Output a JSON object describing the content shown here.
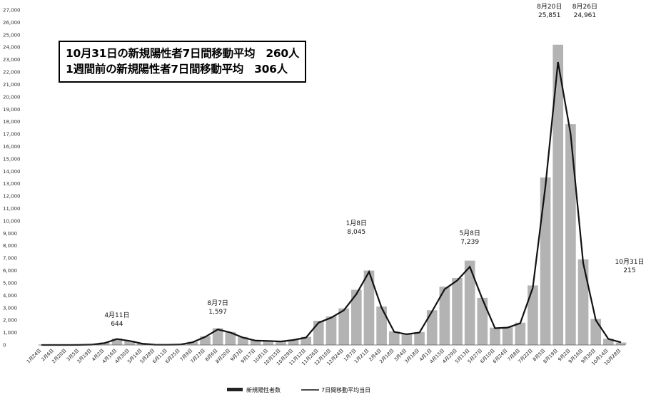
{
  "summary": {
    "line1": "10月31日の新規陽性者7日間移動平均　260人",
    "line2": "1週間前の新規陽性者7日間移動平均　306人"
  },
  "legend": {
    "bar_label": "新規陽性者数",
    "line_label": "7日間移動平均当日"
  },
  "chart_data": {
    "type": "bar",
    "title": "",
    "xlabel": "",
    "ylabel": "",
    "ylim": [
      0,
      27000
    ],
    "yticks": [
      "27,000",
      "26,000",
      "25,000",
      "24,000",
      "23,000",
      "22,000",
      "21,000",
      "20,000",
      "19,000",
      "18,000",
      "17,000",
      "16,000",
      "15,000",
      "14,000",
      "13,000",
      "12,000",
      "11,000",
      "10,000",
      "9,000",
      "8,000",
      "7,000",
      "6,000",
      "5,000",
      "4,000",
      "3,000",
      "2,000",
      "1,000",
      "0"
    ],
    "categories": [
      "1月24日",
      "2月6日",
      "2月20日",
      "3月5日",
      "3月19日",
      "4月2日",
      "4月16日",
      "4月30日",
      "5月14日",
      "5月28日",
      "6月11日",
      "6月25日",
      "7月9日",
      "7月23日",
      "8月6日",
      "8月20日",
      "9月3日",
      "9月17日",
      "10月1日",
      "10月15日",
      "10月29日",
      "11月12日",
      "11月26日",
      "12月10日",
      "12月24日",
      "1月7日",
      "1月21日",
      "2月4日",
      "2月18日",
      "3月4日",
      "3月18日",
      "4月1日",
      "4月15日",
      "4月29日",
      "5月13日",
      "5月27日",
      "6月10日",
      "6月24日",
      "7月8日",
      "7月22日",
      "8月5日",
      "8月19日",
      "9月2日",
      "9月16日",
      "9月30日",
      "10月14日",
      "10月28日"
    ],
    "series": [
      {
        "name": "新規陽性者数",
        "values": [
          0,
          0,
          0,
          10,
          40,
          200,
          520,
          350,
          120,
          30,
          20,
          40,
          250,
          700,
          1350,
          1050,
          650,
          380,
          350,
          300,
          420,
          650,
          1950,
          2300,
          2950,
          4450,
          6000,
          3100,
          1100,
          900,
          1050,
          2800,
          4700,
          5400,
          6800,
          3800,
          1400,
          1450,
          1800,
          4800,
          13500,
          24200,
          17800,
          6900,
          2100,
          500,
          200
        ]
      },
      {
        "name": "7日間移動平均当日",
        "values": [
          0,
          0,
          0,
          5,
          30,
          150,
          480,
          330,
          110,
          25,
          15,
          35,
          220,
          650,
          1250,
          1000,
          600,
          350,
          330,
          280,
          400,
          600,
          1800,
          2200,
          2800,
          4100,
          5900,
          3000,
          1050,
          870,
          1000,
          2700,
          4500,
          5200,
          6300,
          3700,
          1350,
          1400,
          1750,
          4600,
          12800,
          22800,
          17000,
          6600,
          2000,
          480,
          215
        ]
      }
    ],
    "annotations": [
      {
        "label": "4月11日",
        "value": "644",
        "x": "4月16日",
        "y": 644
      },
      {
        "label": "8月7日",
        "value": "1,597",
        "x": "8月6日",
        "y": 1597
      },
      {
        "label": "1月8日",
        "value": "8,045",
        "x": "1月7日",
        "y": 8045
      },
      {
        "label": "5月8日",
        "value": "7,239",
        "x": "5月13日",
        "y": 7239
      },
      {
        "label": "8月20日",
        "value": "25,851",
        "x": "8月19日",
        "y": 25851
      },
      {
        "label": "8月26日",
        "value": "24,961",
        "x": "9月2日",
        "y": 24961
      },
      {
        "label": "10月31日",
        "value": "215",
        "x": "10月28日",
        "y": 215
      }
    ],
    "colors": {
      "bars": "#9a9a9a",
      "line": "#111111"
    },
    "grid": false,
    "legend_position": "bottom-center"
  }
}
